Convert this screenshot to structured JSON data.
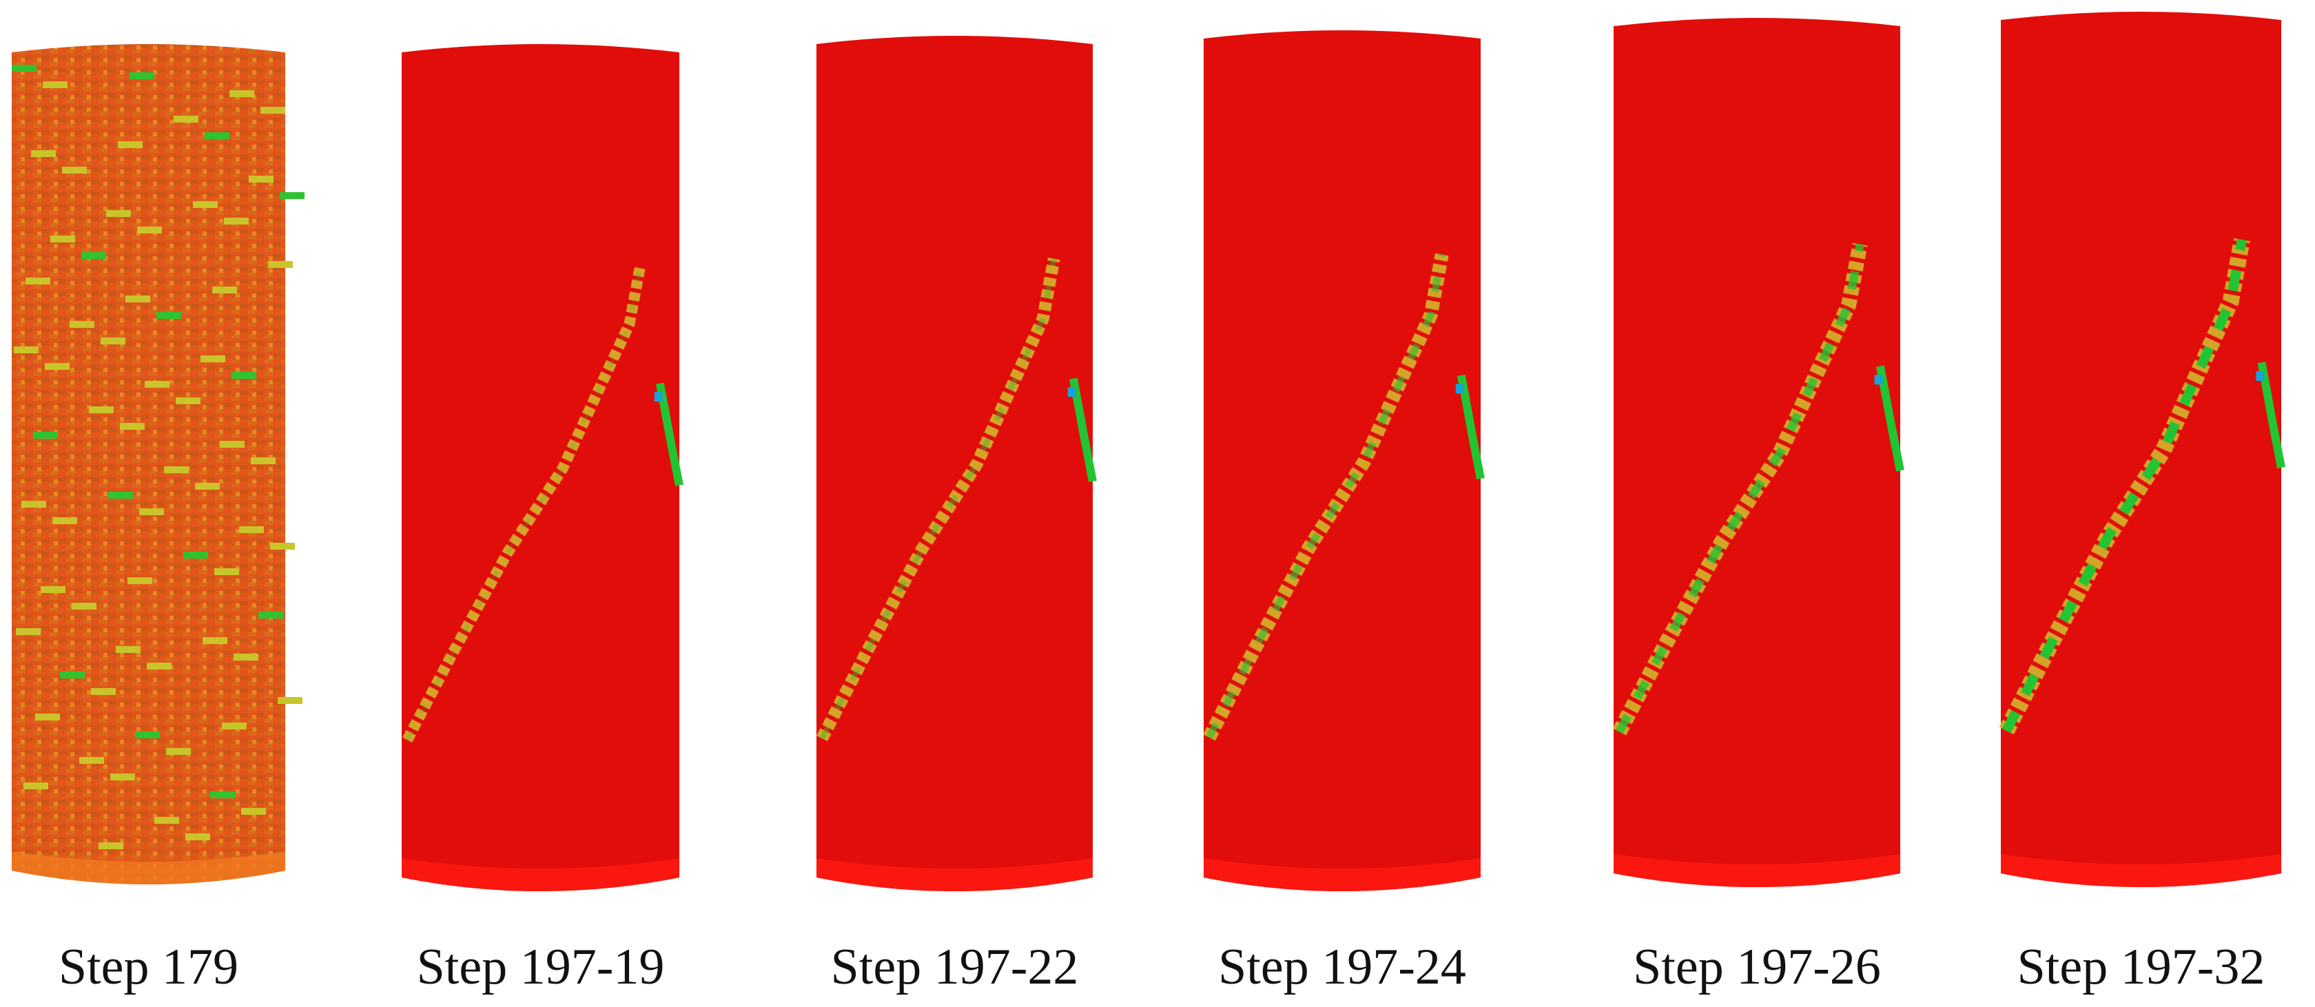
{
  "labels": [
    "Step 179",
    "Step 197-19",
    "Step 197-22",
    "Step 197-24",
    "Step 197-26",
    "Step 197-32"
  ]
}
